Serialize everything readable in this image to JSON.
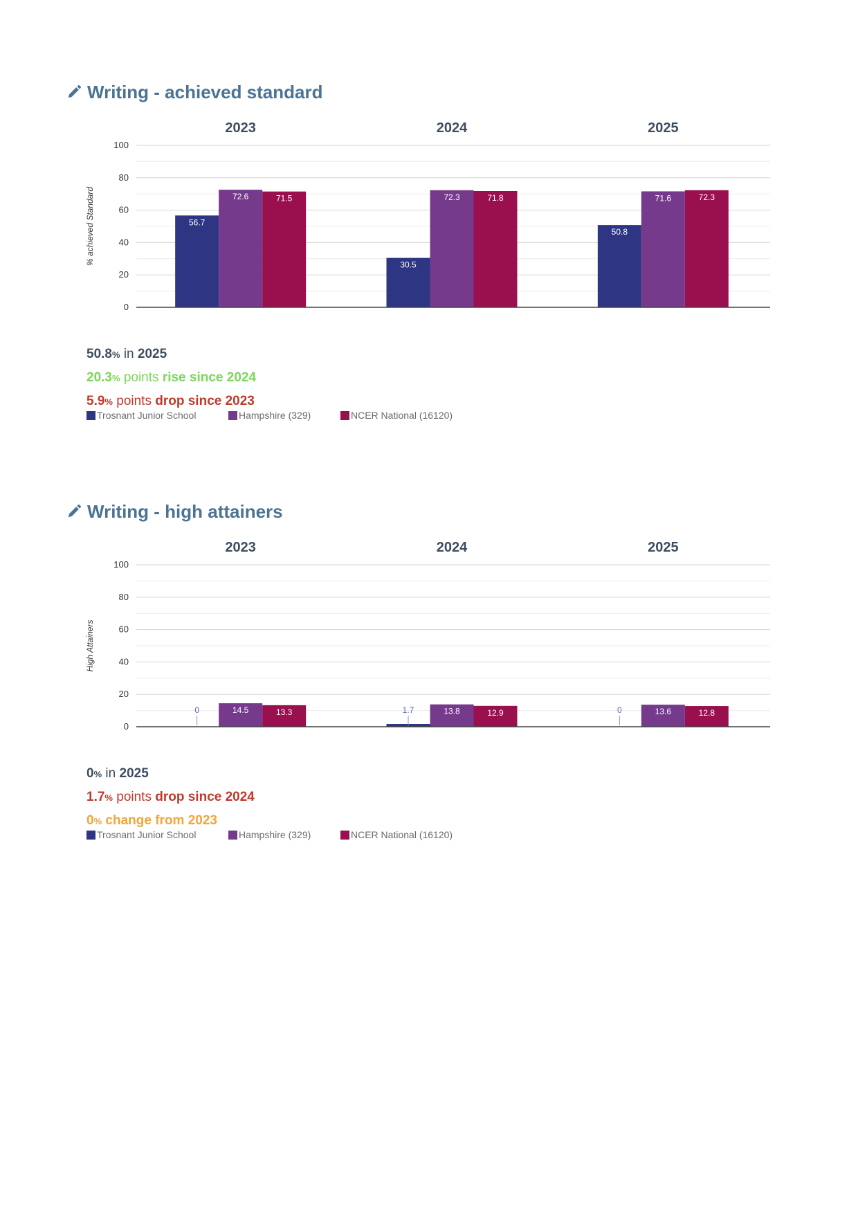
{
  "series_colors": [
    "#2e3583",
    "#763a8c",
    "#9a0f4d"
  ],
  "legend": [
    {
      "label": "Trosnant Junior School",
      "color": "#2e3583"
    },
    {
      "label": "Hampshire (329)",
      "color": "#763a8c"
    },
    {
      "label": "NCER National (16120)",
      "color": "#9a0f4d"
    }
  ],
  "sections": [
    {
      "title": "Writing - achieved standard",
      "icon": "pencil-icon",
      "summary": {
        "line1": {
          "value": "50.8",
          "unit": "%",
          "mid": " in ",
          "tail": "2025"
        },
        "line2": {
          "value": "20.3",
          "unit": "%",
          "mid": " points ",
          "tail": "rise since 2024",
          "color": "#7cd65b"
        },
        "line3": {
          "value": "5.9",
          "unit": "%",
          "mid": " points ",
          "tail": "drop since 2023",
          "color": "#c0392b"
        }
      }
    },
    {
      "title": "Writing - high attainers",
      "icon": "pencil-icon",
      "summary": {
        "line1": {
          "value": "0",
          "unit": "%",
          "mid": " in ",
          "tail": "2025"
        },
        "line2": {
          "value": "1.7",
          "unit": "%",
          "mid": " points ",
          "tail": "drop since 2024",
          "color": "#c0392b"
        },
        "line3": {
          "value": "0",
          "unit": "%",
          "mid": " ",
          "tail": "change from 2023",
          "color": "#f2a53a"
        }
      }
    }
  ],
  "chart_data": [
    {
      "type": "bar",
      "categories": [
        "2023",
        "2024",
        "2025"
      ],
      "series": [
        {
          "name": "Trosnant Junior School",
          "values": [
            56.7,
            30.5,
            50.8
          ]
        },
        {
          "name": "Hampshire (329)",
          "values": [
            72.6,
            72.3,
            71.6
          ]
        },
        {
          "name": "NCER National (16120)",
          "values": [
            71.5,
            71.8,
            72.3
          ]
        }
      ],
      "ylabel": "% achieved Standard",
      "ylim": [
        0,
        100
      ],
      "yticks": [
        0,
        20,
        40,
        60,
        80,
        100
      ],
      "grid": true,
      "category_labels_position": "top",
      "legend_position": "bottom-left"
    },
    {
      "type": "bar",
      "categories": [
        "2023",
        "2024",
        "2025"
      ],
      "series": [
        {
          "name": "Trosnant Junior School",
          "values": [
            0,
            1.7,
            0
          ]
        },
        {
          "name": "Hampshire (329)",
          "values": [
            14.5,
            13.8,
            13.6
          ]
        },
        {
          "name": "NCER National (16120)",
          "values": [
            13.3,
            12.9,
            12.8
          ]
        }
      ],
      "ylabel": "High Attainers",
      "ylim": [
        0,
        100
      ],
      "yticks": [
        0,
        20,
        40,
        60,
        80,
        100
      ],
      "grid": true,
      "category_labels_position": "top",
      "legend_position": "bottom-left"
    }
  ]
}
